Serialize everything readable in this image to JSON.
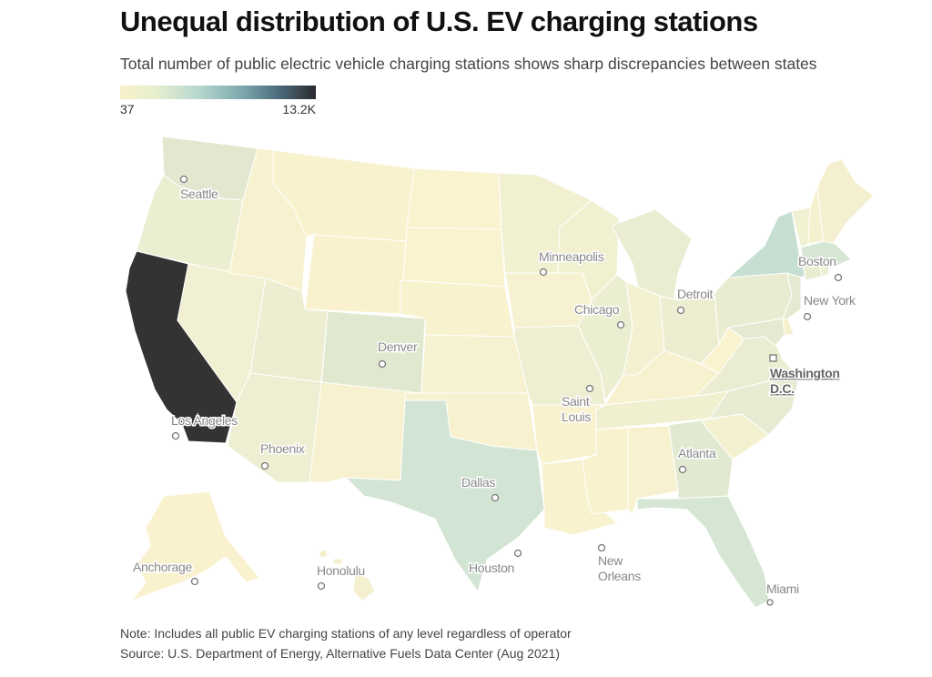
{
  "header": {
    "title": "Unequal distribution of U.S. EV charging stations",
    "subtitle": "Total number of public electric vehicle charging stations shows sharp discrepancies between states"
  },
  "legend": {
    "min_label": "37",
    "max_label": "13.2K",
    "min_color": "#f6f0c9",
    "max_color": "#2a2a2e"
  },
  "map": {
    "states": [
      {
        "id": "WA",
        "color": "#e2e8cf"
      },
      {
        "id": "OR",
        "color": "#eceed2"
      },
      {
        "id": "CA",
        "color": "#333333"
      },
      {
        "id": "NV",
        "color": "#f1f0d2"
      },
      {
        "id": "ID",
        "color": "#f8f1cf"
      },
      {
        "id": "MT",
        "color": "#f9f2cf"
      },
      {
        "id": "WY",
        "color": "#faf2cf"
      },
      {
        "id": "UT",
        "color": "#ecedd1"
      },
      {
        "id": "AZ",
        "color": "#eeeed2"
      },
      {
        "id": "CO",
        "color": "#e0e8cf"
      },
      {
        "id": "NM",
        "color": "#f7f1cf"
      },
      {
        "id": "ND",
        "color": "#faf3d0"
      },
      {
        "id": "SD",
        "color": "#faf3d0"
      },
      {
        "id": "NE",
        "color": "#f8f2cf"
      },
      {
        "id": "KS",
        "color": "#f5f1d1"
      },
      {
        "id": "OK",
        "color": "#f7f1cf"
      },
      {
        "id": "TX",
        "color": "#d2e4d3"
      },
      {
        "id": "MN",
        "color": "#f1f0d1"
      },
      {
        "id": "IA",
        "color": "#f6f1d0"
      },
      {
        "id": "MO",
        "color": "#eeefd2"
      },
      {
        "id": "AR",
        "color": "#f8f2cf"
      },
      {
        "id": "LA",
        "color": "#f8f2cf"
      },
      {
        "id": "WI",
        "color": "#f1f0d1"
      },
      {
        "id": "IL",
        "color": "#eceed2"
      },
      {
        "id": "MI",
        "color": "#eaedd2"
      },
      {
        "id": "IN",
        "color": "#f3f1d1"
      },
      {
        "id": "OH",
        "color": "#ecedd1"
      },
      {
        "id": "KY",
        "color": "#f7f1cf"
      },
      {
        "id": "TN",
        "color": "#f0f0d1"
      },
      {
        "id": "MS",
        "color": "#f9f2cf"
      },
      {
        "id": "AL",
        "color": "#f7f1cf"
      },
      {
        "id": "GA",
        "color": "#e2e9d1"
      },
      {
        "id": "FL",
        "color": "#d6e6d4"
      },
      {
        "id": "SC",
        "color": "#f4f1d0"
      },
      {
        "id": "NC",
        "color": "#e6ebd1"
      },
      {
        "id": "VA",
        "color": "#eaedd1"
      },
      {
        "id": "WV",
        "color": "#faf3cf"
      },
      {
        "id": "PA",
        "color": "#e9ecd1"
      },
      {
        "id": "NY",
        "color": "#c7dfd3"
      },
      {
        "id": "VT",
        "color": "#f1f0d1"
      },
      {
        "id": "NH",
        "color": "#f6f1cf"
      },
      {
        "id": "ME",
        "color": "#f4f0cf"
      },
      {
        "id": "MA",
        "color": "#d6e7d4"
      },
      {
        "id": "CT",
        "color": "#e8ecd1"
      },
      {
        "id": "RI",
        "color": "#eeefd2"
      },
      {
        "id": "NJ",
        "color": "#e4ead1"
      },
      {
        "id": "DE",
        "color": "#f5f1cf"
      },
      {
        "id": "MD",
        "color": "#e4e9d1"
      },
      {
        "id": "AK",
        "color": "#faf2cf"
      },
      {
        "id": "HI",
        "color": "#f4efcf"
      }
    ],
    "cities": [
      {
        "name": "Seattle"
      },
      {
        "name": "Los Angeles"
      },
      {
        "name": "Phoenix"
      },
      {
        "name": "Denver"
      },
      {
        "name": "Dallas"
      },
      {
        "name": "Houston"
      },
      {
        "name": "Minneapolis"
      },
      {
        "name": "Chicago"
      },
      {
        "name": "Saint Louis"
      },
      {
        "name": "New Orleans"
      },
      {
        "name": "Detroit"
      },
      {
        "name": "Atlanta"
      },
      {
        "name": "Miami"
      },
      {
        "name": "Washington D.C."
      },
      {
        "name": "New York"
      },
      {
        "name": "Boston"
      },
      {
        "name": "Anchorage"
      },
      {
        "name": "Honolulu"
      }
    ]
  },
  "footer": {
    "note": "Note: Includes all public EV charging stations of any level regardless of operator",
    "source": "Source: U.S. Department of Energy, Alternative Fuels Data Center (Aug 2021)"
  }
}
